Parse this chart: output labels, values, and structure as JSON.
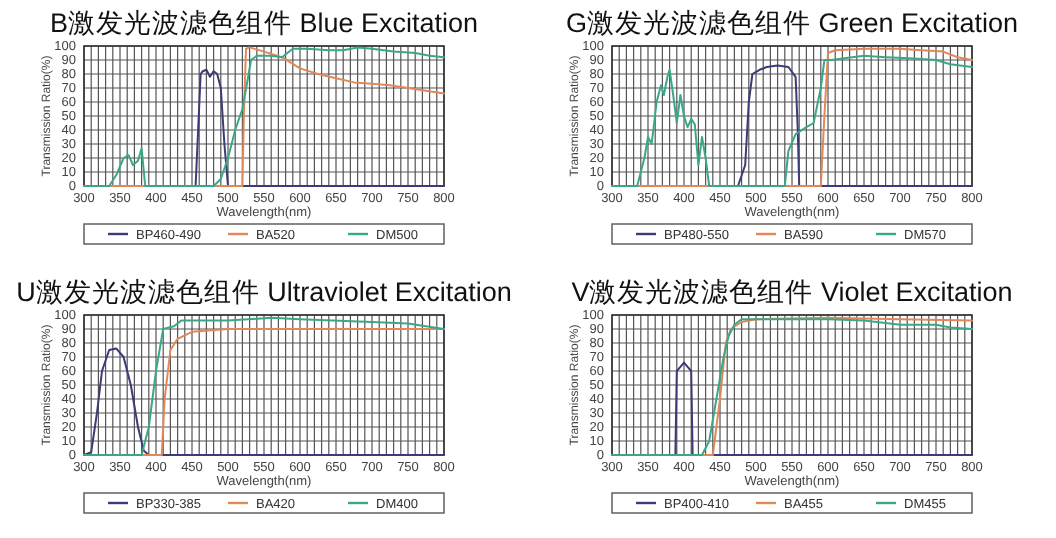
{
  "chart_data": [
    {
      "type": "line",
      "title": "B激发光波滤色组件  Blue Excitation",
      "xlabel": "Wavelength(nm)",
      "ylabel": "Transmission Ratio(%)",
      "xlim": [
        300,
        800
      ],
      "ylim": [
        0,
        100
      ],
      "xticks": [
        300,
        {
          "value": 310,
          "label": null
        },
        {
          "value": 320,
          "label": null
        },
        {
          "value": 330,
          "label": null
        },
        {
          "value": 340,
          "label": null
        },
        350,
        {
          "value": 360,
          "label": null
        },
        {
          "value": 370,
          "label": null
        },
        {
          "value": 380,
          "label": null
        },
        {
          "value": 390,
          "label": null
        },
        400,
        {
          "value": 410,
          "label": null
        },
        {
          "value": 420,
          "label": null
        },
        {
          "value": 430,
          "label": null
        },
        {
          "value": 440,
          "label": null
        },
        450,
        {
          "value": 460,
          "label": null
        },
        {
          "value": 470,
          "label": null
        },
        {
          "value": 480,
          "label": null
        },
        {
          "value": 490,
          "label": null
        },
        500,
        {
          "value": 510,
          "label": null
        },
        {
          "value": 520,
          "label": null
        },
        {
          "value": 530,
          "label": null
        },
        {
          "value": 540,
          "label": null
        },
        550,
        {
          "value": 560,
          "label": null
        },
        {
          "value": 570,
          "label": null
        },
        {
          "value": 580,
          "label": null
        },
        {
          "value": 590,
          "label": null
        },
        600,
        {
          "value": 610,
          "label": null
        },
        {
          "value": 620,
          "label": null
        },
        {
          "value": 630,
          "label": null
        },
        {
          "value": 640,
          "label": null
        },
        650,
        {
          "value": 660,
          "label": null
        },
        {
          "value": 670,
          "label": null
        },
        {
          "value": 680,
          "label": null
        },
        {
          "value": 690,
          "label": null
        },
        700,
        {
          "value": 710,
          "label": null
        },
        {
          "value": 720,
          "label": null
        },
        {
          "value": 730,
          "label": null
        },
        {
          "value": 740,
          "label": null
        },
        750,
        {
          "value": 760,
          "label": null
        },
        {
          "value": 770,
          "label": null
        },
        {
          "value": 780,
          "label": null
        },
        {
          "value": 790,
          "label": null
        },
        800
      ],
      "yticks": [
        0,
        10,
        20,
        30,
        40,
        50,
        60,
        70,
        80,
        90,
        100
      ],
      "grid": true,
      "legend": "bottom",
      "series": [
        {
          "name": "BP460-490",
          "color": "#3b3b78",
          "x": [
            300,
            455,
            462,
            465,
            470,
            475,
            480,
            485,
            490,
            495,
            500,
            800
          ],
          "values": [
            0,
            0,
            80,
            82,
            83,
            78,
            82,
            80,
            70,
            30,
            0,
            0
          ]
        },
        {
          "name": "BA520",
          "color": "#e0885a",
          "x": [
            300,
            520,
            522,
            525,
            530,
            550,
            575,
            600,
            625,
            650,
            675,
            700,
            725,
            750,
            775,
            800
          ],
          "values": [
            0,
            0,
            50,
            98,
            99,
            96,
            92,
            84,
            80,
            77,
            74,
            73,
            72,
            70,
            68,
            66
          ]
        },
        {
          "name": "DM500",
          "color": "#3aa888",
          "x": [
            300,
            335,
            345,
            355,
            362,
            368,
            375,
            380,
            385,
            480,
            490,
            500,
            510,
            520,
            527,
            532,
            540,
            560,
            575,
            590,
            610,
            640,
            660,
            680,
            700,
            730,
            760,
            780,
            800
          ],
          "values": [
            0,
            0,
            8,
            20,
            22,
            15,
            18,
            27,
            0,
            0,
            5,
            20,
            40,
            55,
            75,
            90,
            93,
            93,
            92,
            98,
            98,
            97,
            97,
            99,
            98,
            96,
            95,
            93,
            92
          ]
        }
      ]
    },
    {
      "type": "line",
      "title": "G激发光波滤色组件  Green Excitation",
      "xlabel": "Wavelength(nm)",
      "ylabel": "Transmission Ratio(%)",
      "xlim": [
        300,
        800
      ],
      "ylim": [
        0,
        100
      ],
      "xticks": [
        300,
        {
          "value": 310,
          "label": null
        },
        {
          "value": 320,
          "label": null
        },
        {
          "value": 330,
          "label": null
        },
        {
          "value": 340,
          "label": null
        },
        350,
        {
          "value": 360,
          "label": null
        },
        {
          "value": 370,
          "label": null
        },
        {
          "value": 380,
          "label": null
        },
        {
          "value": 390,
          "label": null
        },
        400,
        {
          "value": 410,
          "label": null
        },
        {
          "value": 420,
          "label": null
        },
        {
          "value": 430,
          "label": null
        },
        {
          "value": 440,
          "label": null
        },
        450,
        {
          "value": 460,
          "label": null
        },
        {
          "value": 470,
          "label": null
        },
        {
          "value": 480,
          "label": null
        },
        {
          "value": 490,
          "label": null
        },
        500,
        {
          "value": 510,
          "label": null
        },
        {
          "value": 520,
          "label": null
        },
        {
          "value": 530,
          "label": null
        },
        {
          "value": 540,
          "label": null
        },
        550,
        {
          "value": 560,
          "label": null
        },
        {
          "value": 570,
          "label": null
        },
        {
          "value": 580,
          "label": null
        },
        {
          "value": 590,
          "label": null
        },
        600,
        {
          "value": 610,
          "label": null
        },
        {
          "value": 620,
          "label": null
        },
        {
          "value": 630,
          "label": null
        },
        {
          "value": 640,
          "label": null
        },
        650,
        {
          "value": 660,
          "label": null
        },
        {
          "value": 670,
          "label": null
        },
        {
          "value": 680,
          "label": null
        },
        {
          "value": 690,
          "label": null
        },
        700,
        {
          "value": 710,
          "label": null
        },
        {
          "value": 720,
          "label": null
        },
        {
          "value": 730,
          "label": null
        },
        {
          "value": 740,
          "label": null
        },
        750,
        {
          "value": 760,
          "label": null
        },
        {
          "value": 770,
          "label": null
        },
        {
          "value": 780,
          "label": null
        },
        {
          "value": 790,
          "label": null
        },
        800
      ],
      "yticks": [
        0,
        10,
        20,
        30,
        40,
        50,
        60,
        70,
        80,
        90,
        100
      ],
      "grid": true,
      "legend": "bottom",
      "series": [
        {
          "name": "BP480-550",
          "color": "#3b3b78",
          "x": [
            300,
            475,
            485,
            490,
            495,
            505,
            515,
            530,
            545,
            555,
            558,
            560,
            800
          ],
          "values": [
            0,
            0,
            15,
            60,
            80,
            83,
            85,
            86,
            85,
            78,
            40,
            0,
            0
          ]
        },
        {
          "name": "BA590",
          "color": "#e0885a",
          "x": [
            300,
            590,
            595,
            600,
            610,
            650,
            700,
            730,
            760,
            780,
            800
          ],
          "values": [
            0,
            0,
            50,
            95,
            97,
            98,
            98,
            97,
            96,
            92,
            90
          ]
        },
        {
          "name": "DM570",
          "color": "#3aa888",
          "x": [
            300,
            335,
            345,
            350,
            355,
            362,
            368,
            372,
            377,
            380,
            385,
            390,
            395,
            400,
            405,
            410,
            415,
            420,
            425,
            430,
            435,
            540,
            545,
            555,
            570,
            580,
            590,
            595,
            605,
            620,
            650,
            680,
            720,
            750,
            770,
            800
          ],
          "values": [
            0,
            0,
            20,
            35,
            30,
            60,
            72,
            65,
            78,
            83,
            65,
            45,
            65,
            50,
            42,
            48,
            44,
            15,
            35,
            20,
            0,
            0,
            25,
            37,
            42,
            45,
            70,
            90,
            90,
            91,
            93,
            92,
            91,
            90,
            87,
            85
          ]
        }
      ]
    },
    {
      "type": "line",
      "title": "U激发光波滤色组件  Ultraviolet Excitation",
      "xlabel": "Wavelength(nm)",
      "ylabel": "Transmission Ratio(%)",
      "xlim": [
        300,
        800
      ],
      "ylim": [
        0,
        100
      ],
      "xticks": [
        300,
        {
          "value": 310,
          "label": null
        },
        {
          "value": 320,
          "label": null
        },
        {
          "value": 330,
          "label": null
        },
        {
          "value": 340,
          "label": null
        },
        350,
        {
          "value": 360,
          "label": null
        },
        {
          "value": 370,
          "label": null
        },
        {
          "value": 380,
          "label": null
        },
        {
          "value": 390,
          "label": null
        },
        400,
        {
          "value": 410,
          "label": null
        },
        {
          "value": 420,
          "label": null
        },
        {
          "value": 430,
          "label": null
        },
        {
          "value": 440,
          "label": null
        },
        450,
        {
          "value": 460,
          "label": null
        },
        {
          "value": 470,
          "label": null
        },
        {
          "value": 480,
          "label": null
        },
        {
          "value": 490,
          "label": null
        },
        500,
        {
          "value": 510,
          "label": null
        },
        {
          "value": 520,
          "label": null
        },
        {
          "value": 530,
          "label": null
        },
        {
          "value": 540,
          "label": null
        },
        550,
        {
          "value": 560,
          "label": null
        },
        {
          "value": 570,
          "label": null
        },
        {
          "value": 580,
          "label": null
        },
        {
          "value": 590,
          "label": null
        },
        600,
        {
          "value": 610,
          "label": null
        },
        {
          "value": 620,
          "label": null
        },
        {
          "value": 630,
          "label": null
        },
        {
          "value": 640,
          "label": null
        },
        650,
        {
          "value": 660,
          "label": null
        },
        {
          "value": 670,
          "label": null
        },
        {
          "value": 680,
          "label": null
        },
        {
          "value": 690,
          "label": null
        },
        700,
        {
          "value": 710,
          "label": null
        },
        {
          "value": 720,
          "label": null
        },
        {
          "value": 730,
          "label": null
        },
        {
          "value": 740,
          "label": null
        },
        750,
        {
          "value": 760,
          "label": null
        },
        {
          "value": 770,
          "label": null
        },
        {
          "value": 780,
          "label": null
        },
        {
          "value": 790,
          "label": null
        },
        800
      ],
      "yticks": [
        0,
        10,
        20,
        30,
        40,
        50,
        60,
        70,
        80,
        90,
        100
      ],
      "grid": true,
      "legend": "bottom",
      "series": [
        {
          "name": "BP330-385",
          "color": "#3b3b78",
          "x": [
            300,
            310,
            318,
            325,
            335,
            345,
            355,
            365,
            375,
            383,
            390,
            800
          ],
          "values": [
            0,
            2,
            30,
            60,
            75,
            76,
            70,
            50,
            20,
            3,
            0,
            0
          ]
        },
        {
          "name": "BA420",
          "color": "#e0885a",
          "x": [
            300,
            408,
            412,
            420,
            430,
            450,
            500,
            800
          ],
          "values": [
            0,
            0,
            40,
            75,
            83,
            88,
            90,
            90
          ]
        },
        {
          "name": "DM400",
          "color": "#3aa888",
          "x": [
            300,
            380,
            390,
            400,
            410,
            425,
            435,
            500,
            560,
            600,
            700,
            750,
            800
          ],
          "values": [
            0,
            0,
            20,
            60,
            90,
            92,
            96,
            96,
            98,
            97,
            95,
            94,
            90
          ]
        }
      ]
    },
    {
      "type": "line",
      "title": "V激发光波滤色组件  Violet Excitation",
      "xlabel": "Wavelength(nm)",
      "ylabel": "Transmission Ratio(%)",
      "xlim": [
        300,
        800
      ],
      "ylim": [
        0,
        100
      ],
      "xticks": [
        300,
        {
          "value": 310,
          "label": null
        },
        {
          "value": 320,
          "label": null
        },
        {
          "value": 330,
          "label": null
        },
        {
          "value": 340,
          "label": null
        },
        350,
        {
          "value": 360,
          "label": null
        },
        {
          "value": 370,
          "label": null
        },
        {
          "value": 380,
          "label": null
        },
        {
          "value": 390,
          "label": null
        },
        400,
        {
          "value": 410,
          "label": null
        },
        {
          "value": 420,
          "label": null
        },
        {
          "value": 430,
          "label": null
        },
        {
          "value": 440,
          "label": null
        },
        450,
        {
          "value": 460,
          "label": null
        },
        {
          "value": 470,
          "label": null
        },
        {
          "value": 480,
          "label": null
        },
        {
          "value": 490,
          "label": null
        },
        500,
        {
          "value": 510,
          "label": null
        },
        {
          "value": 520,
          "label": null
        },
        {
          "value": 530,
          "label": null
        },
        {
          "value": 540,
          "label": null
        },
        550,
        {
          "value": 560,
          "label": null
        },
        {
          "value": 570,
          "label": null
        },
        {
          "value": 580,
          "label": null
        },
        {
          "value": 590,
          "label": null
        },
        600,
        {
          "value": 610,
          "label": null
        },
        {
          "value": 620,
          "label": null
        },
        {
          "value": 630,
          "label": null
        },
        {
          "value": 640,
          "label": null
        },
        650,
        {
          "value": 660,
          "label": null
        },
        {
          "value": 670,
          "label": null
        },
        {
          "value": 680,
          "label": null
        },
        {
          "value": 690,
          "label": null
        },
        700,
        {
          "value": 710,
          "label": null
        },
        {
          "value": 720,
          "label": null
        },
        {
          "value": 730,
          "label": null
        },
        {
          "value": 740,
          "label": null
        },
        750,
        {
          "value": 760,
          "label": null
        },
        {
          "value": 770,
          "label": null
        },
        {
          "value": 780,
          "label": null
        },
        {
          "value": 790,
          "label": null
        },
        800
      ],
      "yticks": [
        0,
        10,
        20,
        30,
        40,
        50,
        60,
        70,
        80,
        90,
        100
      ],
      "grid": true,
      "legend": "bottom",
      "series": [
        {
          "name": "BP400-410",
          "color": "#3b3b78",
          "x": [
            300,
            388,
            390,
            395,
            400,
            405,
            410,
            412,
            800
          ],
          "values": [
            0,
            0,
            60,
            63,
            66,
            63,
            60,
            0,
            0
          ]
        },
        {
          "name": "BA455",
          "color": "#e0885a",
          "x": [
            300,
            440,
            450,
            458,
            465,
            480,
            500,
            600,
            700,
            800
          ],
          "values": [
            0,
            0,
            40,
            80,
            90,
            95,
            97,
            98,
            97,
            96
          ]
        },
        {
          "name": "DM455",
          "color": "#3aa888",
          "x": [
            300,
            425,
            435,
            445,
            455,
            462,
            470,
            480,
            600,
            650,
            700,
            750,
            770,
            800
          ],
          "values": [
            0,
            0,
            10,
            40,
            70,
            85,
            93,
            97,
            97,
            96,
            93,
            93,
            91,
            90
          ]
        }
      ]
    }
  ]
}
